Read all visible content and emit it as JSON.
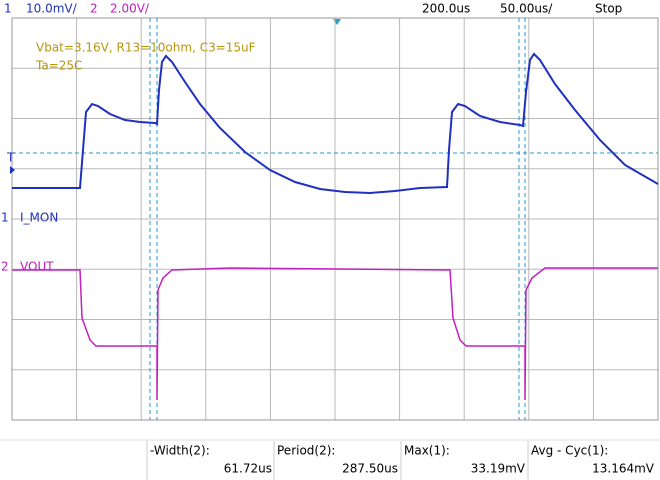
{
  "header": {
    "ch1_number": "1",
    "ch1_scale": "10.0mV/",
    "ch2_number": "2",
    "ch2_scale": "2.00V/",
    "time_position": "200.0us",
    "time_scale": "50.00us/",
    "run_state": "Stop"
  },
  "annotation": {
    "line1": "Vbat=3.16V, R13=10ohm, C3=15uF",
    "line2": "Ta=25C"
  },
  "trigger_marker": "T",
  "channels": [
    {
      "number": "1",
      "label": "I_MON"
    },
    {
      "number": "2",
      "label": "VOUT"
    }
  ],
  "measurements": [
    {
      "label": "-Width(2):",
      "value": "61.72us"
    },
    {
      "label": "Period(2):",
      "value": "287.50us"
    },
    {
      "label": "Max(1):",
      "value": "33.19mV"
    },
    {
      "label": "Avg - Cyc(1):",
      "value": "13.164mV"
    }
  ]
}
